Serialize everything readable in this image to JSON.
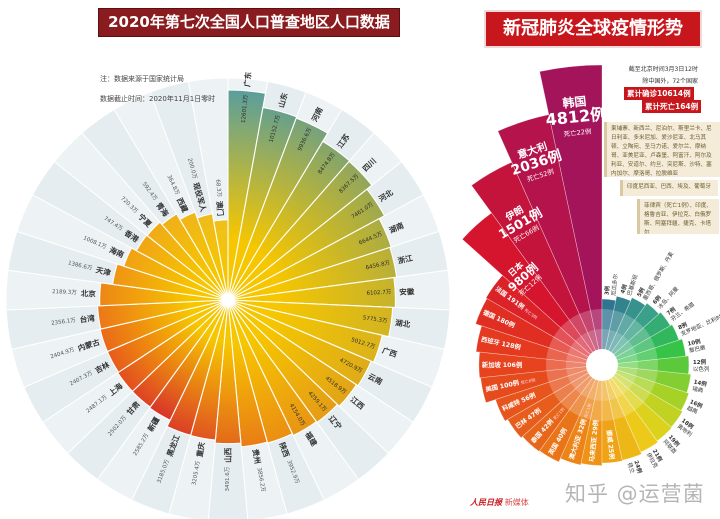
{
  "left": {
    "title": "2020年第七次全国人口普查地区人口数据",
    "note_source": "注：数据来源于国家统计局",
    "note_date": "数据截止时间：2020年11月1日零时"
  },
  "right": {
    "title": "新冠肺炎全球疫情形势",
    "as_of": "截至北京时间3月3日12时",
    "countries_count": "除中国外，72个国家",
    "total_cases": "累计确诊10614例",
    "total_deaths": "累计死亡164例",
    "box_1_case": "柬埔寨、新西兰、尼泊尔、斯里兰卡、尼日利亚、多米尼加、爱沙尼亚、北马其顿、立陶宛、圣马力诺、爱尔兰、摩纳哥、亚美尼亚、卢森堡、阿富汗、阿尔及利亚、安道尔、约旦、突尼斯、沙特、塞内加尔、摩洛哥、拉脱维亚",
    "box_2_case": "印度尼西亚、巴西、埃及、葡萄牙",
    "box_3_case": "菲律宾（死亡1例）、印度、格鲁吉亚、伊拉克、白俄罗斯、阿塞拜疆、捷克、卡塔尔",
    "logo_main": "人民日报",
    "logo_sub": "新媒体",
    "watermark": "知乎 @运营菌"
  },
  "chart_data": [
    {
      "type": "bar",
      "subtype": "polar-rose",
      "title": "2020年第七次全国人口普查地区人口数据",
      "unit": "万",
      "categories": [
        "广东",
        "山东",
        "河南",
        "江苏",
        "四川",
        "河北",
        "湖南",
        "浙江",
        "安徽",
        "湖北",
        "广西",
        "云南",
        "江西",
        "辽宁",
        "福建",
        "陕西",
        "贵州",
        "山西",
        "重庆",
        "黑龙江",
        "新疆",
        "甘肃",
        "上海",
        "吉林",
        "内蒙古",
        "台湾",
        "北京",
        "天津",
        "海南",
        "香港",
        "宁夏",
        "青海",
        "西藏",
        "现役军人",
        "澳门"
      ],
      "values": [
        12601.3,
        10152.7,
        9936.6,
        8474.8,
        8367.5,
        7461.0,
        6644.5,
        6456.8,
        6102.7,
        5775.3,
        5012.7,
        4720.9,
        4518.9,
        4259.1,
        4154.0,
        3952.9,
        3856.2,
        3491.6,
        3205.4,
        3185.0,
        2585.2,
        2502.0,
        2487.1,
        2407.3,
        2404.9,
        2356.1,
        2189.3,
        1386.6,
        1008.1,
        747.4,
        720.3,
        592.4,
        364.8,
        200.0,
        68.3
      ],
      "value_labels": [
        "12601.3万",
        "10152.7万",
        "9936.6万",
        "8474.8万",
        "8367.5万",
        "7461.0万",
        "6644.5万",
        "6456.8万",
        "6102.7万",
        "5775.3万",
        "5012.7万",
        "4720.9万",
        "4518.9万",
        "4259.1万",
        "4154.0万",
        "3952.9万",
        "3856.2万",
        "3491.6万",
        "3205.4万",
        "3185.0万",
        "2585.2万",
        "2502.0万",
        "2487.1万",
        "2407.3万",
        "2404.9万",
        "2356.1万",
        "2189.3万",
        "1386.6万",
        "1008.1万",
        "747.4万",
        "720.3万",
        "592.4万",
        "364.8万",
        "200.0万",
        "68.3万"
      ]
    },
    {
      "type": "bar",
      "subtype": "polar-rose",
      "title": "新冠肺炎全球疫情形势",
      "items": [
        {
          "name": "韩国",
          "cases": 4812,
          "cases_label": "4812例",
          "deaths_label": "死亡22例"
        },
        {
          "name": "意大利",
          "cases": 2036,
          "cases_label": "2036例",
          "deaths_label": "死亡52例"
        },
        {
          "name": "伊朗",
          "cases": 1501,
          "cases_label": "1501例",
          "deaths_label": "死亡66例"
        },
        {
          "name": "日本",
          "cases": 980,
          "cases_label": "980例",
          "deaths_label": "死亡12例"
        },
        {
          "name": "法国",
          "cases": 191,
          "cases_label": "191例",
          "deaths_label": "死亡3例"
        },
        {
          "name": "德国",
          "cases": 180,
          "cases_label": "180例"
        },
        {
          "name": "西班牙",
          "cases": 128,
          "cases_label": "128例"
        },
        {
          "name": "新加坡",
          "cases": 106,
          "cases_label": "106例"
        },
        {
          "name": "美国",
          "cases": 100,
          "cases_label": "100例",
          "deaths_label": "死亡6例"
        },
        {
          "name": "科威特",
          "cases": 56,
          "cases_label": "56例"
        },
        {
          "name": "巴林",
          "cases": 47,
          "cases_label": "47例"
        },
        {
          "name": "泰国",
          "cases": 42,
          "cases_label": "42例",
          "deaths_label": "死亡1例"
        },
        {
          "name": "英国",
          "cases": 40,
          "cases_label": "40例"
        },
        {
          "name": "澳大利亚",
          "cases": 32,
          "cases_label": "32例",
          "deaths_label": "死亡1例"
        },
        {
          "name": "马来西亚",
          "cases": 29,
          "cases_label": "29例"
        },
        {
          "name": "挪威",
          "cases": 25,
          "cases_label": "25例"
        },
        {
          "name": "荷兰",
          "cases": 24,
          "cases_label": "24例"
        },
        {
          "name": "伊拉克",
          "cases": 21,
          "cases_label": "21例"
        },
        {
          "name": "阿联酋",
          "cases": 19,
          "cases_label": "19例"
        },
        {
          "name": "奥地利",
          "cases": 18,
          "cases_label": "18例"
        },
        {
          "name": "越南",
          "cases": 16,
          "cases_label": "16例"
        },
        {
          "name": "瑞典",
          "cases": 14,
          "cases_label": "14例"
        },
        {
          "name": "以色列",
          "cases": 12,
          "cases_label": "12例"
        },
        {
          "name": "黎巴嫩",
          "cases": 10,
          "cases_label": "10例"
        },
        {
          "name": "克罗地亚、比利时",
          "cases": 8,
          "cases_label": "8例"
        },
        {
          "name": "芬兰、希腊",
          "cases": 7,
          "cases_label": "7例"
        },
        {
          "name": "冰岛、阿曼",
          "cases": 6,
          "cases_label": "6例"
        },
        {
          "name": "墨西哥、俄罗斯、丹麦",
          "cases": 5,
          "cases_label": "5例"
        },
        {
          "name": "巴基斯坦",
          "cases": 4,
          "cases_label": "4例"
        },
        {
          "name": "厄瓜多尔",
          "cases": 3,
          "cases_label": "3例"
        }
      ]
    }
  ]
}
